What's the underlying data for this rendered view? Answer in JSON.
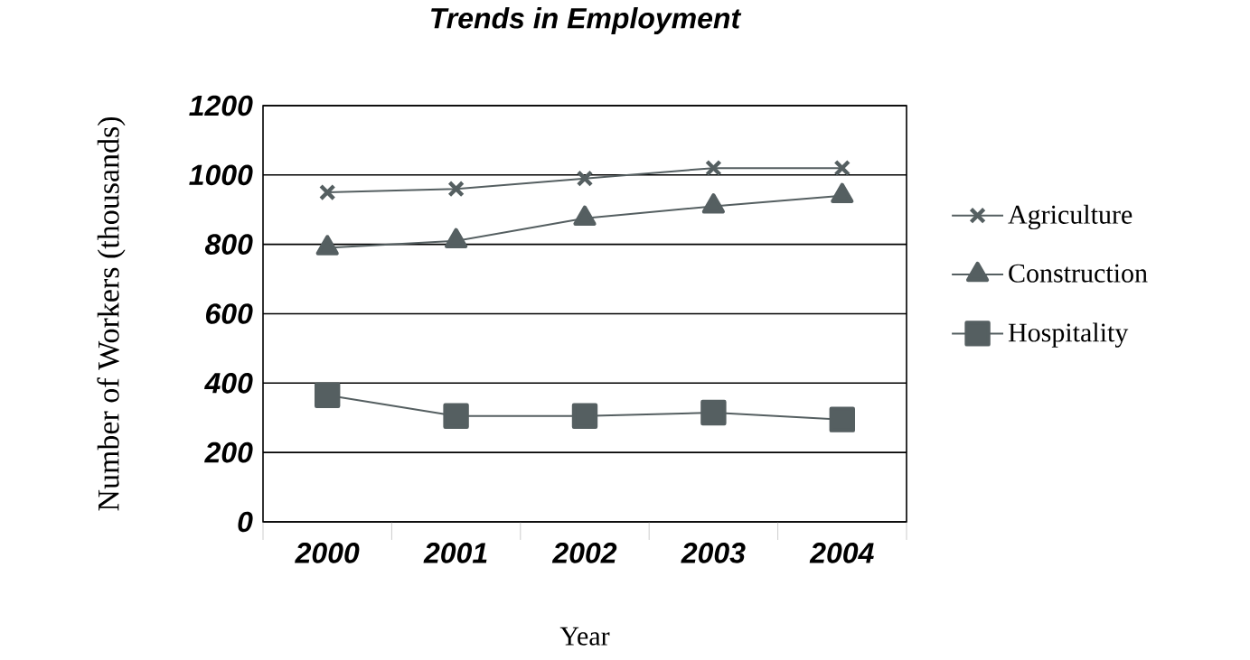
{
  "chart_data": {
    "type": "line",
    "title": "Trends in Employment",
    "xlabel": "Year",
    "ylabel": "Number of Workers (thousands)",
    "categories": [
      "2000",
      "2001",
      "2002",
      "2003",
      "2004"
    ],
    "series": [
      {
        "name": "Agriculture",
        "color": "#555f61",
        "marker": "cross",
        "values": [
          950,
          960,
          990,
          1020,
          1020
        ]
      },
      {
        "name": "Construction",
        "color": "#555f61",
        "marker": "triangle",
        "values": [
          790,
          810,
          875,
          910,
          940
        ]
      },
      {
        "name": "Hospitality",
        "color": "#555f61",
        "marker": "square",
        "values": [
          365,
          305,
          305,
          315,
          295
        ]
      }
    ],
    "ylim": [
      0,
      1200
    ],
    "yticks": [
      0,
      200,
      400,
      600,
      800,
      1000,
      1200
    ],
    "grid": "y",
    "legend": "right",
    "line_style": "solid"
  }
}
